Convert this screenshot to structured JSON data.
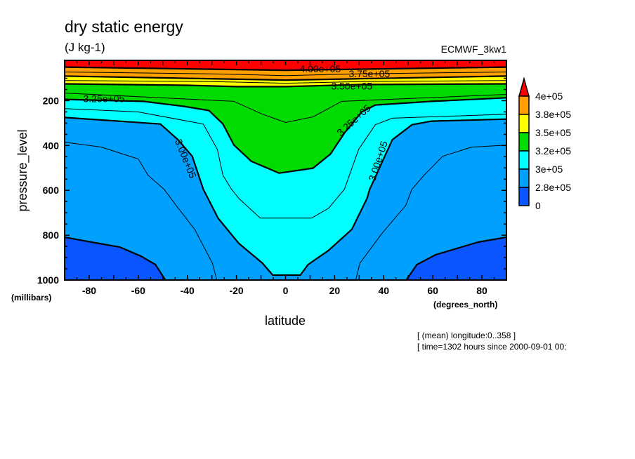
{
  "chart_data": {
    "type": "contour",
    "title": "dry static energy",
    "units": "(J kg-1)",
    "dataset": "ECMWF_3kw1",
    "xlabel": "latitude",
    "xunits": "(degrees_north)",
    "ylabel": "pressure_level",
    "yunits": "(millibars)",
    "xlim": [
      -90,
      90
    ],
    "ylim": [
      1000,
      20
    ],
    "xticks": [
      -80,
      -60,
      -40,
      -20,
      0,
      20,
      40,
      60,
      80
    ],
    "xtick_labels": [
      "-80",
      "-60",
      "-40",
      "-20",
      "0",
      "20",
      "40",
      "60",
      "80"
    ],
    "yticks": [
      200,
      400,
      600,
      800,
      1000
    ],
    "ytick_labels": [
      "200",
      "400",
      "600",
      "800",
      "1000"
    ],
    "footnotes": [
      "[ (mean) longitude:0..358 ]",
      "[ time=1302 hours since 2000-09-01 00:"
    ],
    "colors": {
      "below_280000": "#0a55ff",
      "280000_300000": "#00a0ff",
      "300000_325000": "#00ffff",
      "325000_350000": "#00dc00",
      "350000_375000": "#ffff00",
      "375000_400000": "#ffa000",
      "above_400000": "#ff0000"
    },
    "filled_contours": [
      {
        "level": 280000,
        "color": "#0a55ff",
        "below": true,
        "paths": [
          [
            [
              -90,
              809
            ],
            [
              -79,
              831
            ],
            [
              -67.5,
              853
            ],
            [
              -59,
              893
            ],
            [
              -53,
              931
            ],
            [
              -49,
              1000
            ],
            [
              -90,
              1000
            ]
          ],
          [
            [
              49.2,
              1000
            ],
            [
              53.5,
              931
            ],
            [
              61.2,
              887
            ],
            [
              78.4,
              831
            ],
            [
              90,
              809
            ],
            [
              90,
              1000
            ]
          ]
        ]
      },
      {
        "level": 300000,
        "color": "#00ffff",
        "line": [
          [
            -90,
            275
          ],
          [
            -51,
            304
          ],
          [
            -43.8,
            374
          ],
          [
            -38,
            448
          ],
          [
            -33.5,
            595
          ],
          [
            -27.5,
            724
          ],
          [
            -19,
            837
          ],
          [
            -9.4,
            925
          ],
          [
            -5.2,
            978
          ],
          [
            6,
            978
          ],
          [
            9.2,
            931
          ],
          [
            17.5,
            868
          ],
          [
            27,
            774
          ],
          [
            33.2,
            636
          ],
          [
            34.3,
            595
          ],
          [
            43.5,
            374
          ],
          [
            51.5,
            307
          ],
          [
            59.5,
            291
          ],
          [
            90,
            282
          ]
        ]
      },
      {
        "level": 325000,
        "color": "#00dc00",
        "line": [
          [
            -90,
            194
          ],
          [
            -58,
            203
          ],
          [
            -41.5,
            225
          ],
          [
            -31.2,
            244
          ],
          [
            -25.5,
            304
          ],
          [
            -21,
            398
          ],
          [
            -14,
            470
          ],
          [
            -2.6,
            523
          ],
          [
            11.2,
            501
          ],
          [
            18.3,
            438
          ],
          [
            24,
            344
          ],
          [
            31,
            250
          ],
          [
            36.6,
            219
          ],
          [
            59.5,
            203
          ],
          [
            90,
            187
          ]
        ]
      },
      {
        "level": 350000,
        "color": "#ffff00",
        "line": [
          [
            -90,
            125
          ],
          [
            -40,
            131
          ],
          [
            -20,
            137
          ],
          [
            0,
            137
          ],
          [
            30,
            128
          ],
          [
            90,
            125
          ]
        ]
      },
      {
        "level": 375000,
        "color": "#ffa000",
        "line": [
          [
            -90,
            90
          ],
          [
            -40,
            100
          ],
          [
            0,
            108
          ],
          [
            30,
            102
          ],
          [
            90,
            90
          ]
        ]
      },
      {
        "level": 400000,
        "color": "#ff0000",
        "line": [
          [
            -90,
            50
          ],
          [
            -40,
            58
          ],
          [
            0,
            64
          ],
          [
            40,
            58
          ],
          [
            90,
            50
          ]
        ]
      }
    ],
    "thin_contours": [
      [
        [
          -90,
          235
        ],
        [
          -60,
          250
        ],
        [
          -33.5,
          304
        ],
        [
          -27.8,
          417
        ],
        [
          -25.5,
          533
        ],
        [
          -22,
          595
        ],
        [
          -19,
          636
        ],
        [
          -10.3,
          724
        ],
        [
          10.6,
          724
        ],
        [
          17.5,
          680
        ],
        [
          24,
          595
        ],
        [
          26,
          533
        ],
        [
          29.8,
          417
        ],
        [
          36.6,
          307
        ],
        [
          43.5,
          278
        ],
        [
          90,
          260
        ]
      ],
      [
        [
          -90,
          385
        ],
        [
          -75,
          407
        ],
        [
          -60,
          460
        ],
        [
          -56,
          533
        ],
        [
          -49.5,
          595
        ],
        [
          -44.6,
          667
        ],
        [
          -37,
          774
        ],
        [
          -29.8,
          925
        ],
        [
          -28,
          1000
        ]
      ],
      [
        [
          28.6,
          1000
        ],
        [
          30.3,
          925
        ],
        [
          39.2,
          793
        ],
        [
          49,
          667
        ],
        [
          51.5,
          595
        ],
        [
          56.4,
          533
        ],
        [
          64,
          448
        ],
        [
          75.8,
          407
        ],
        [
          90,
          398
        ]
      ],
      [
        [
          -90,
          166
        ],
        [
          -21,
          203
        ],
        [
          -9.4,
          260
        ],
        [
          0,
          297
        ],
        [
          11.2,
          272
        ],
        [
          22.9,
          203
        ],
        [
          90,
          172
        ]
      ],
      [
        [
          -90,
          110
        ],
        [
          -30,
          115
        ],
        [
          0,
          122
        ],
        [
          30,
          115
        ],
        [
          90,
          110
        ]
      ],
      [
        [
          -90,
          72
        ],
        [
          -30,
          80
        ],
        [
          0,
          88
        ],
        [
          30,
          80
        ],
        [
          90,
          72
        ]
      ]
    ],
    "contour_labels": [
      {
        "text": "3.25e+05",
        "lat": -74,
        "p": 194,
        "angle": 0
      },
      {
        "text": "4.00e+05",
        "lat": 27,
        "p": 64,
        "angle": 0
      },
      {
        "text": "3.75e+05",
        "lat": 27,
        "p": 84,
        "angle": 0
      },
      {
        "text": "3.50e+05",
        "lat": 27,
        "p": 135,
        "angle": 0
      },
      {
        "text": "3.25e+05",
        "lat": 28,
        "p": 290,
        "angle": -42
      },
      {
        "text": "3.00e+05",
        "lat": -41,
        "p": 460,
        "angle": 68
      },
      {
        "text": "3.00e+05",
        "lat": 38,
        "p": 470,
        "angle": -72
      }
    ],
    "colorbar": {
      "labels": [
        "4e+05",
        "3.8e+05",
        "3.5e+05",
        "3.2e+05",
        "3e+05",
        "2.8e+05",
        "0"
      ],
      "colors": [
        "#ffa000",
        "#ffff00",
        "#00dc00",
        "#00ffff",
        "#00a0ff",
        "#0a55ff"
      ],
      "arrow_color": "#ff0000"
    }
  }
}
